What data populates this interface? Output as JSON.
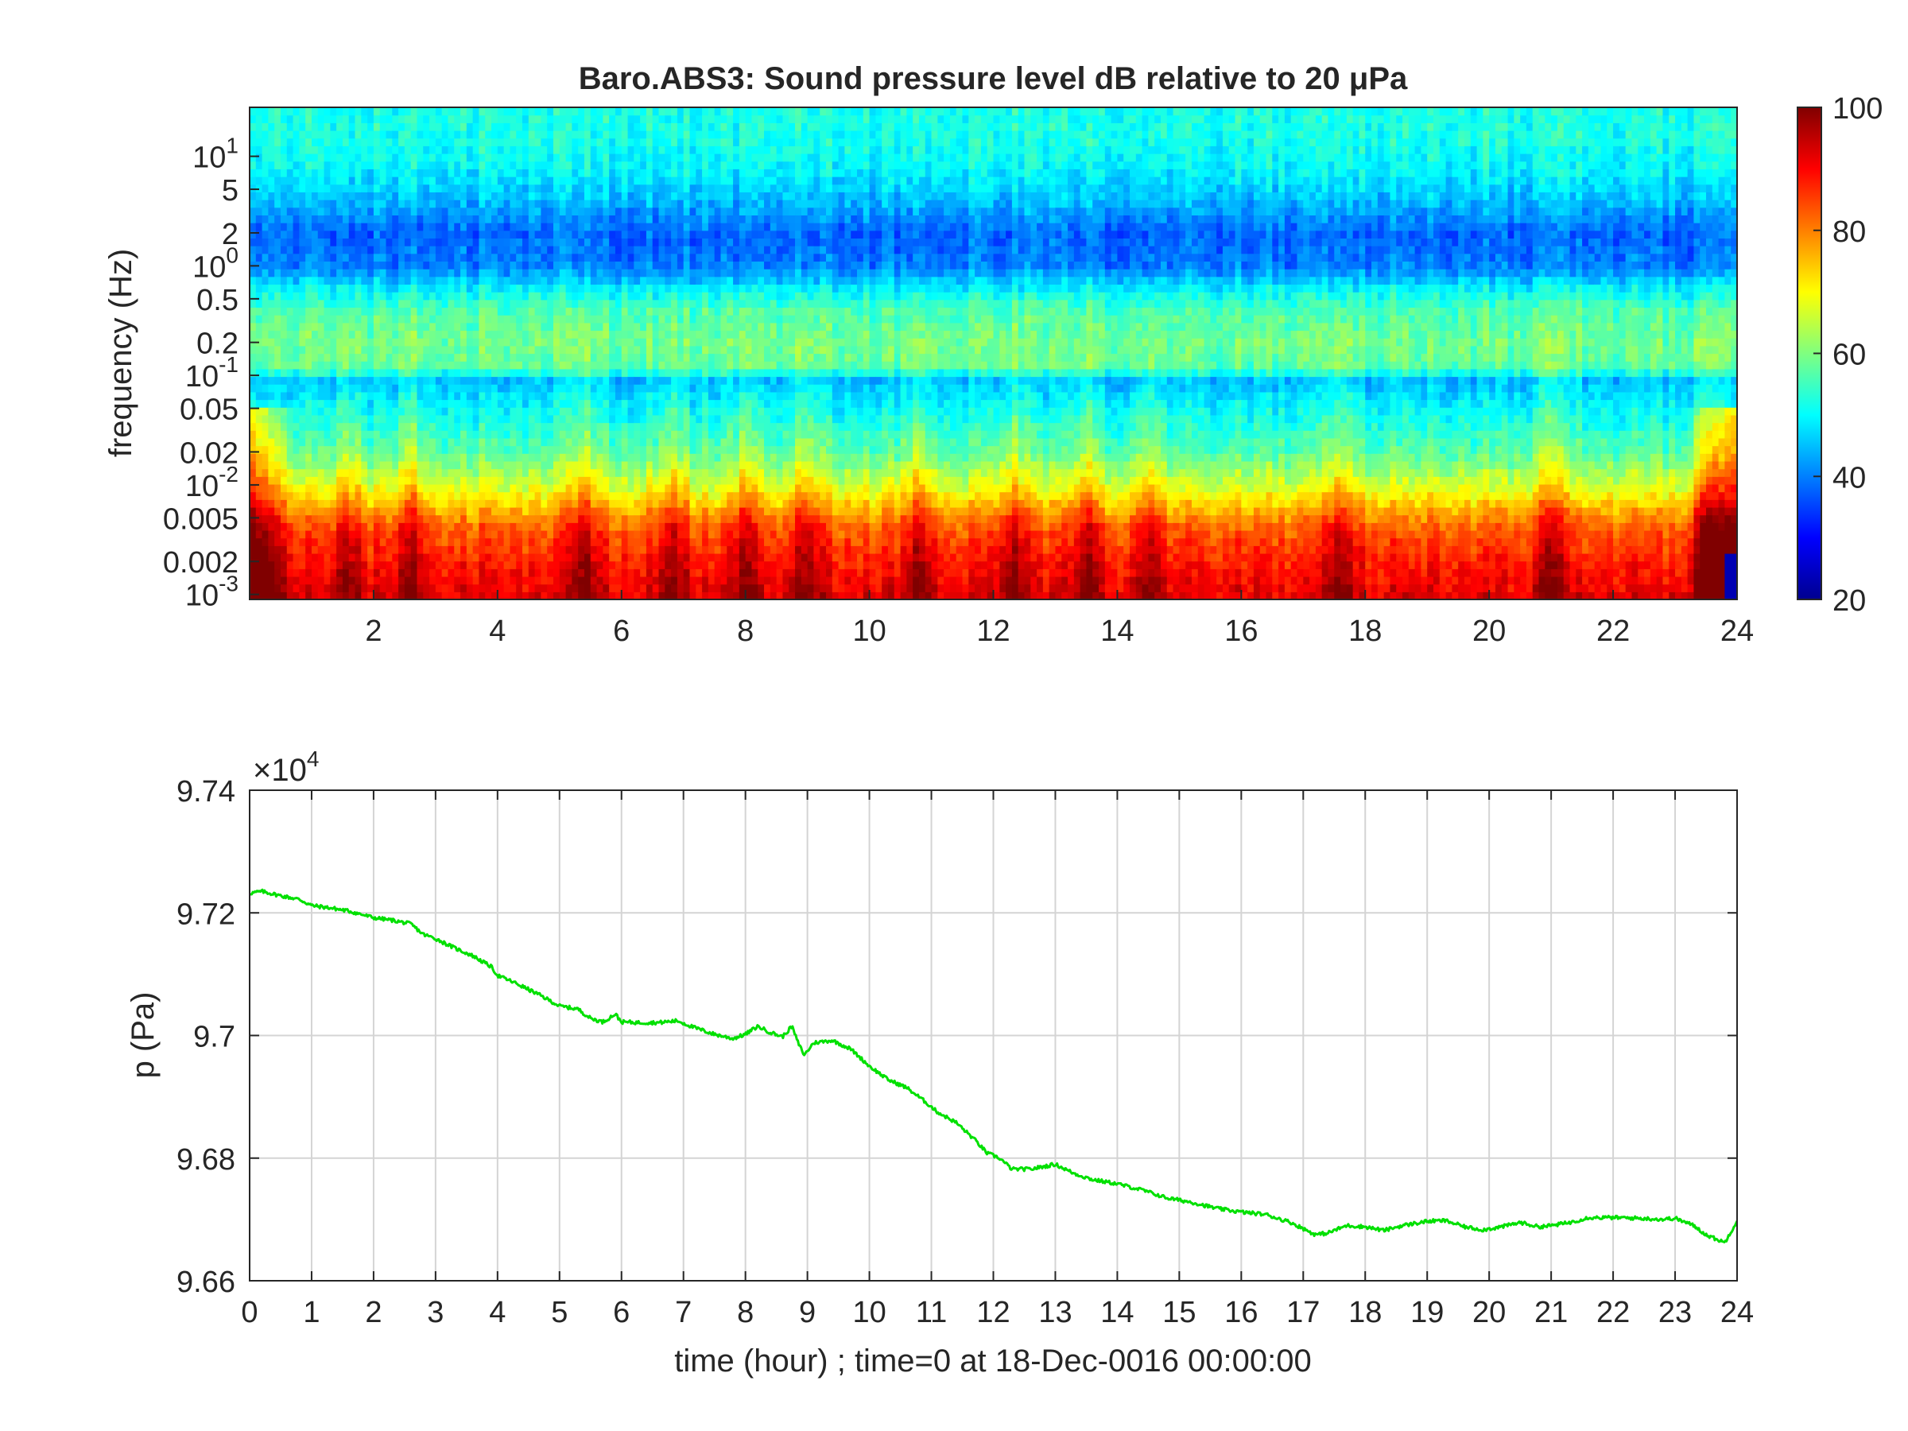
{
  "chart_data": [
    {
      "type": "heatmap",
      "title": "Baro.ABS3: Sound pressure level dB relative to 20 μPa",
      "ylabel": "frequency (Hz)",
      "xlabel": "",
      "x_scale": "linear",
      "y_scale": "log",
      "xlim": [
        0,
        24
      ],
      "ylim": [
        0.0009,
        28
      ],
      "x_ticks": [
        2,
        4,
        6,
        8,
        10,
        12,
        14,
        16,
        18,
        20,
        22,
        24
      ],
      "x_tick_labels": [
        "2",
        "4",
        "6",
        "8",
        "10",
        "12",
        "14",
        "16",
        "18",
        "20",
        "22",
        "24"
      ],
      "y_ticks": [
        0.001,
        0.002,
        0.005,
        0.01,
        0.02,
        0.05,
        0.1,
        0.2,
        0.5,
        1,
        2,
        5,
        10
      ],
      "y_tick_labels": [
        {
          "base": "10",
          "exp": "-3"
        },
        {
          "base": "0.002",
          "exp": ""
        },
        {
          "base": "0.005",
          "exp": ""
        },
        {
          "base": "10",
          "exp": "-2"
        },
        {
          "base": "0.02",
          "exp": ""
        },
        {
          "base": "0.05",
          "exp": ""
        },
        {
          "base": "10",
          "exp": "-1"
        },
        {
          "base": "0.2",
          "exp": ""
        },
        {
          "base": "0.5",
          "exp": ""
        },
        {
          "base": "10",
          "exp": "0"
        },
        {
          "base": "2",
          "exp": ""
        },
        {
          "base": "5",
          "exp": ""
        },
        {
          "base": "10",
          "exp": "1"
        }
      ],
      "colorbar": {
        "colormap": "jet",
        "range": [
          20,
          100
        ],
        "ticks": [
          20,
          40,
          60,
          80,
          100
        ]
      },
      "level_profile": [
        {
          "freq": 0.001,
          "db": 92
        },
        {
          "freq": 0.002,
          "db": 88
        },
        {
          "freq": 0.004,
          "db": 83
        },
        {
          "freq": 0.006,
          "db": 76
        },
        {
          "freq": 0.009,
          "db": 68
        },
        {
          "freq": 0.02,
          "db": 57
        },
        {
          "freq": 0.05,
          "db": 50
        },
        {
          "freq": 0.09,
          "db": 45
        },
        {
          "freq": 0.12,
          "db": 57
        },
        {
          "freq": 0.2,
          "db": 59
        },
        {
          "freq": 0.4,
          "db": 56
        },
        {
          "freq": 0.6,
          "db": 50
        },
        {
          "freq": 1,
          "db": 40
        },
        {
          "freq": 2,
          "db": 38
        },
        {
          "freq": 4,
          "db": 45
        },
        {
          "freq": 8,
          "db": 50
        },
        {
          "freq": 15,
          "db": 52
        },
        {
          "freq": 28,
          "db": 52
        }
      ],
      "events_hours": [
        1.6,
        2.6,
        5.4,
        6.8,
        8.0,
        9.0,
        10.8,
        12.3,
        13.5,
        14.5,
        17.6,
        21.0,
        23.5
      ]
    },
    {
      "type": "line",
      "title": "",
      "xlabel": "time (hour) ; time=0 at 18-Dec-0016 00:00:00",
      "ylabel": "p (Pa)",
      "y_exponent_label": {
        "prefix": "×10",
        "exp": "4"
      },
      "xlim": [
        0,
        24
      ],
      "ylim": [
        9.66,
        9.74
      ],
      "x_ticks": [
        0,
        1,
        2,
        3,
        4,
        5,
        6,
        7,
        8,
        9,
        10,
        11,
        12,
        13,
        14,
        15,
        16,
        17,
        18,
        19,
        20,
        21,
        22,
        23,
        24
      ],
      "y_ticks": [
        9.66,
        9.68,
        9.7,
        9.72,
        9.74
      ],
      "y_tick_labels": [
        "9.66",
        "9.68",
        "9.7",
        "9.72",
        "9.74"
      ],
      "grid": true,
      "line_color": "#00e000",
      "x": [
        0,
        0.2,
        0.5,
        0.8,
        1.0,
        1.3,
        1.6,
        2.0,
        2.3,
        2.6,
        2.8,
        3.0,
        3.3,
        3.6,
        3.9,
        4.0,
        4.3,
        4.7,
        5.0,
        5.3,
        5.5,
        5.7,
        5.9,
        6.0,
        6.3,
        6.6,
        6.9,
        7.2,
        7.5,
        7.8,
        8.0,
        8.2,
        8.4,
        8.6,
        8.75,
        8.85,
        8.95,
        9.1,
        9.4,
        9.7,
        10.0,
        10.3,
        10.6,
        10.9,
        11.1,
        11.4,
        11.7,
        11.9,
        12.1,
        12.3,
        12.6,
        12.9,
        13.0,
        13.3,
        13.6,
        14.0,
        14.4,
        14.8,
        15.2,
        15.6,
        16.0,
        16.4,
        16.8,
        17.0,
        17.2,
        17.4,
        17.7,
        18.0,
        18.3,
        18.6,
        19.0,
        19.3,
        19.6,
        19.9,
        20.2,
        20.5,
        20.8,
        21.0,
        21.3,
        21.6,
        22.0,
        22.4,
        22.8,
        23.0,
        23.3,
        23.5,
        23.8,
        24.0
      ],
      "y": [
        9.7232,
        9.7235,
        9.7228,
        9.7222,
        9.7212,
        9.7208,
        9.7203,
        9.7192,
        9.7188,
        9.7182,
        9.7165,
        9.7158,
        9.7143,
        9.713,
        9.7112,
        9.7098,
        9.7085,
        9.7065,
        9.7048,
        9.7043,
        9.7028,
        9.7022,
        9.7035,
        9.7022,
        9.7021,
        9.7021,
        9.7024,
        9.7012,
        9.7002,
        9.6995,
        9.7002,
        9.7015,
        9.7005,
        9.6998,
        9.7015,
        9.6988,
        9.6968,
        9.6988,
        9.6992,
        9.6978,
        9.695,
        9.6928,
        9.6915,
        9.6892,
        9.6875,
        9.6858,
        9.683,
        9.6808,
        9.68,
        9.6782,
        9.6782,
        9.6788,
        9.679,
        9.6775,
        9.6765,
        9.6758,
        9.6748,
        9.6735,
        9.6728,
        9.6718,
        9.6712,
        9.6708,
        9.6695,
        9.6685,
        9.6675,
        9.6678,
        9.669,
        9.6688,
        9.6682,
        9.669,
        9.6697,
        9.6698,
        9.6688,
        9.6683,
        9.6688,
        9.6695,
        9.6688,
        9.669,
        9.6695,
        9.6703,
        9.6703,
        9.6702,
        9.67,
        9.6702,
        9.669,
        9.6675,
        9.6662,
        9.6698
      ]
    }
  ]
}
